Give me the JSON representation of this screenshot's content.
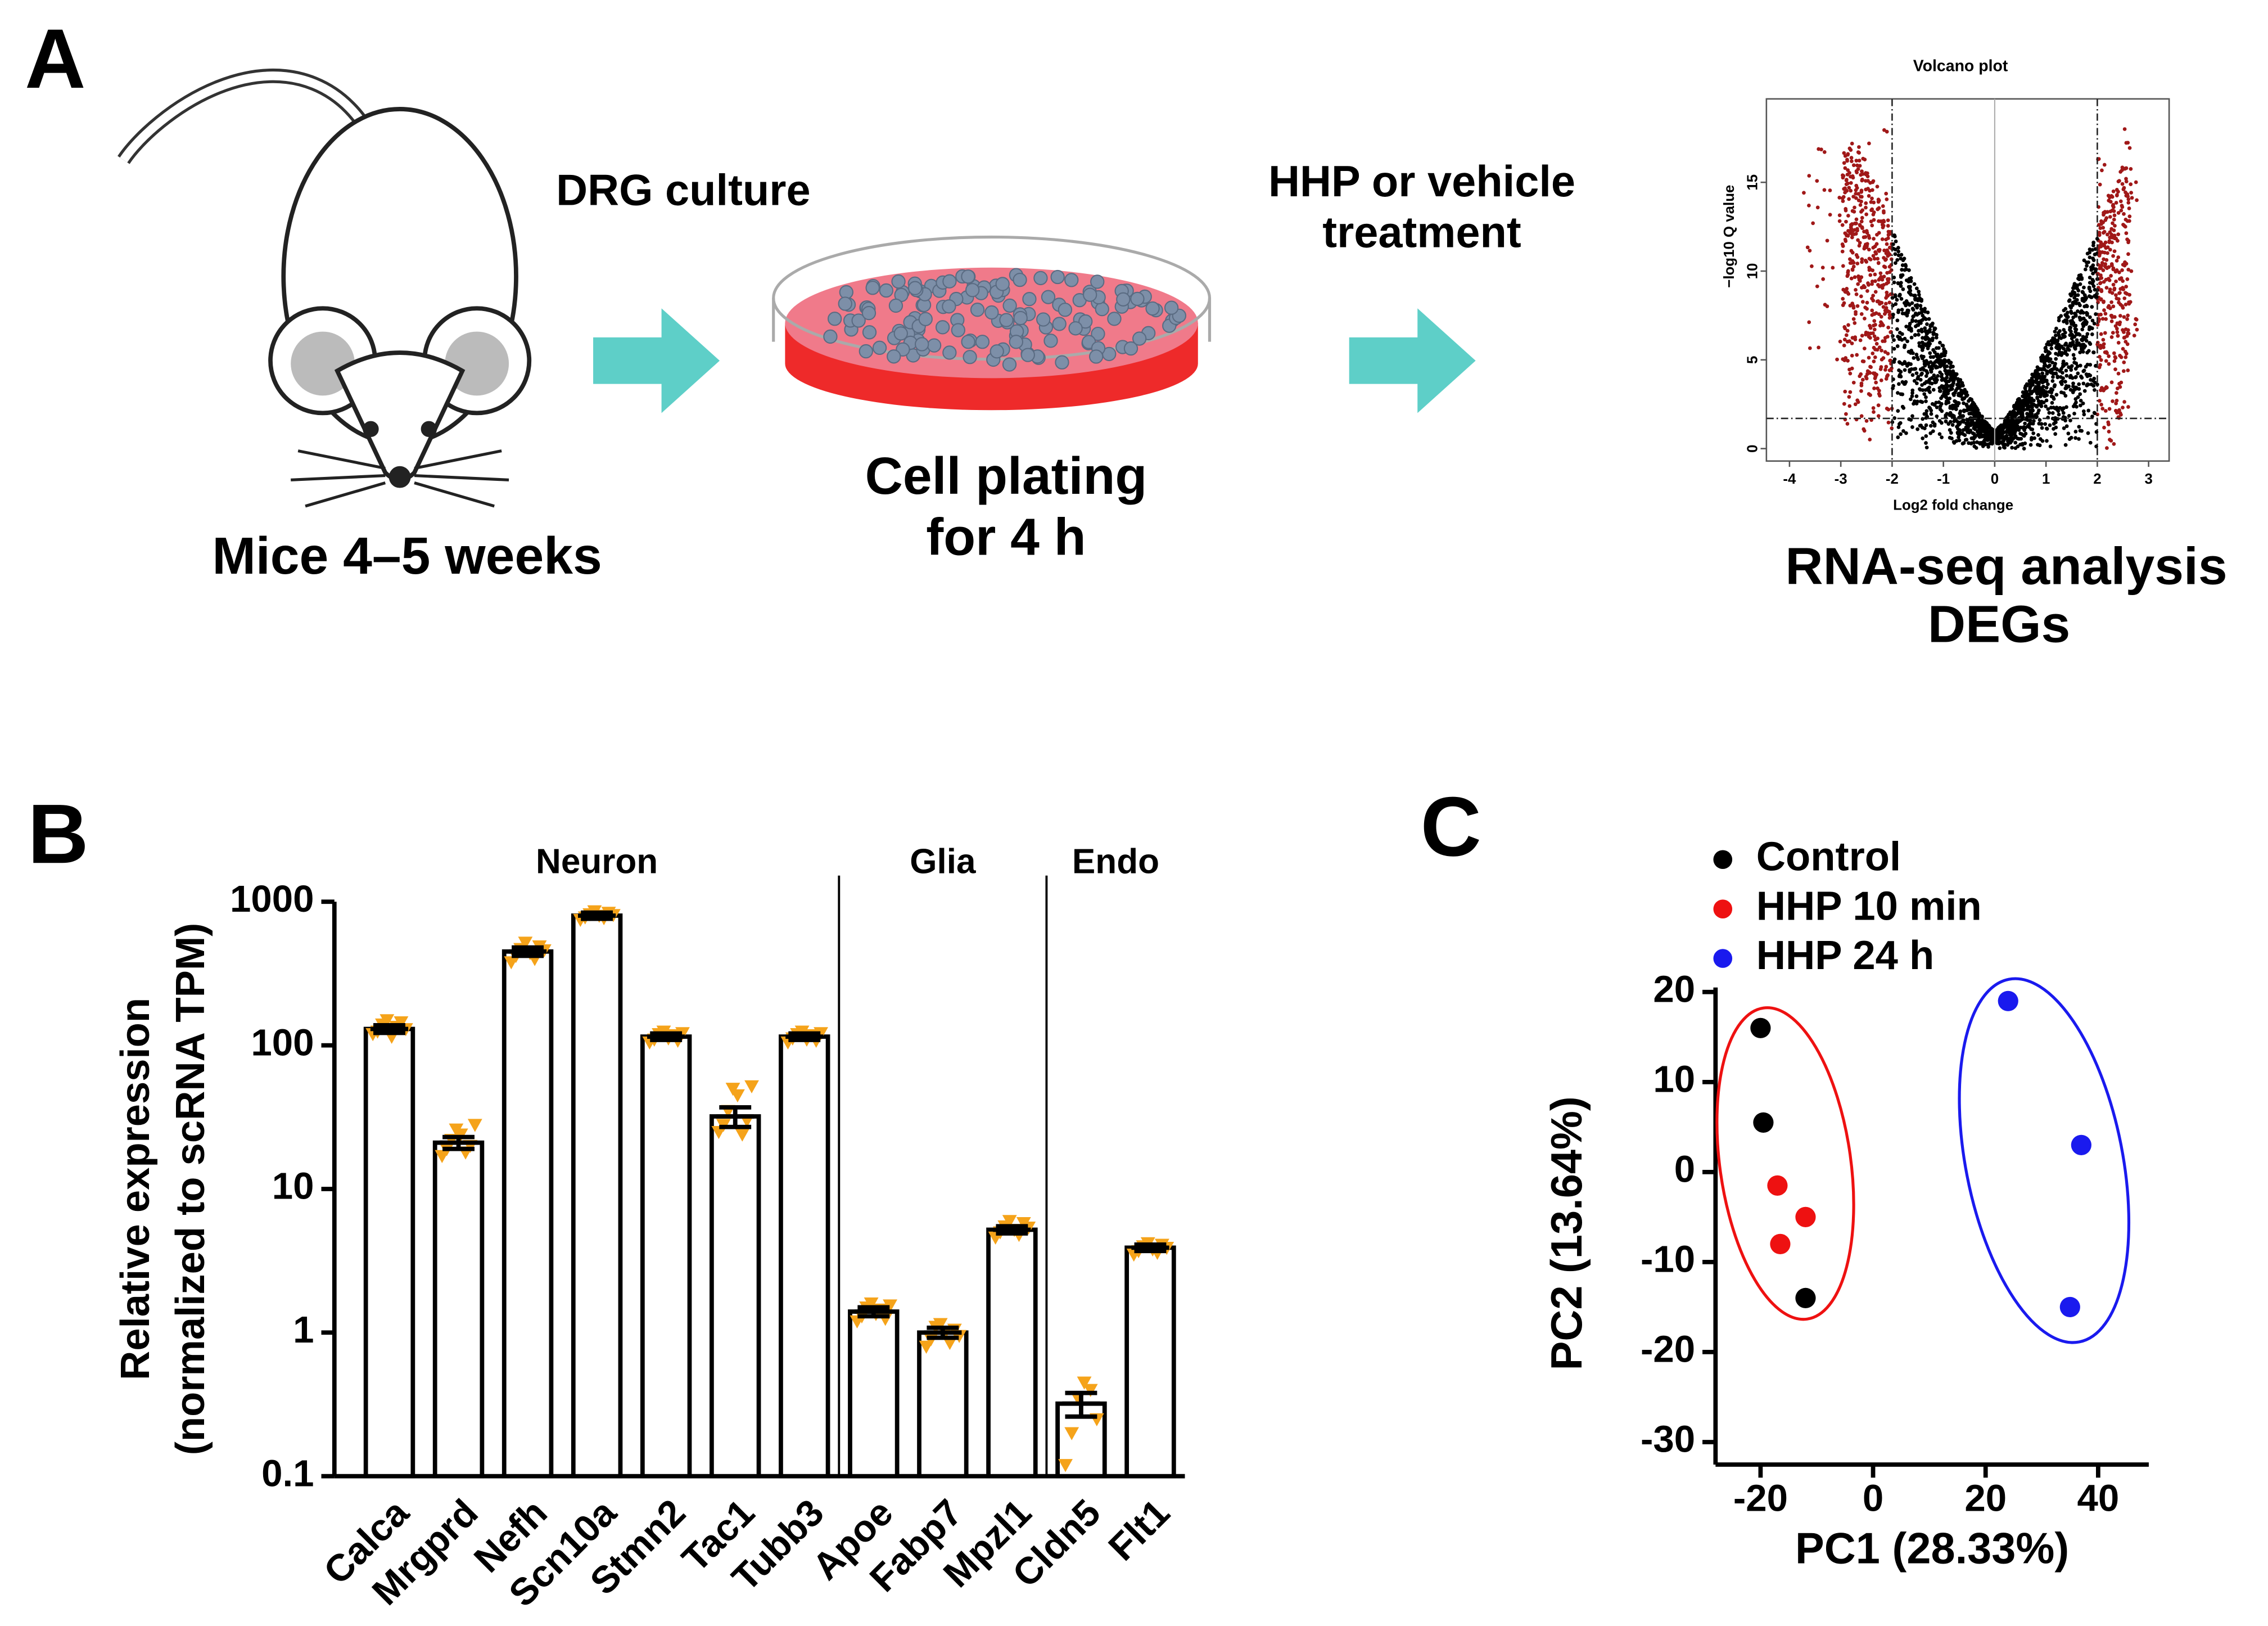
{
  "panel_labels": [
    "A",
    "B",
    "C"
  ],
  "workflow": {
    "step1": "DRG culture",
    "step1_caption": "Mice 4–5 weeks",
    "step2": [
      "Cell plating",
      "for 4 h"
    ],
    "step3": [
      "HHP or vehicle",
      "treatment"
    ],
    "step4": [
      "RNA-seq analysis",
      "DEGs"
    ]
  },
  "chart_data": [
    {
      "type": "volcano",
      "title": "Volcano plot",
      "xlabel": "Log2 fold change",
      "ylabel": "−log10 Q value",
      "xlim": [
        -4.45,
        3.4
      ],
      "ylim": [
        -0.7,
        19.7
      ],
      "xticks": [
        -4,
        -3,
        -2,
        -1,
        0,
        1,
        2,
        3
      ],
      "yticks": [
        0,
        5,
        10,
        15
      ],
      "fold_change_threshold": [
        -2,
        2
      ],
      "q_threshold": 1.7
    },
    {
      "type": "bar",
      "ylabel": [
        "Relative expression",
        "(normalized to scRNA TPM)"
      ],
      "log_scale": true,
      "ylim": [
        0.1,
        1000
      ],
      "yticks": [
        0.1,
        1,
        10,
        100,
        1000
      ],
      "groups": [
        {
          "name": "Neuron",
          "count": 7
        },
        {
          "name": "Glia",
          "count": 3
        },
        {
          "name": "Endo",
          "count": 2
        }
      ],
      "categories": [
        "Calca",
        "Mrgprd",
        "Nefh",
        "Scn10a",
        "Stmn2",
        "Tac1",
        "Tubb3",
        "Apoe",
        "Fabp7",
        "Mpzl1",
        "Cldn5",
        "Flt1"
      ],
      "values": [
        130,
        21,
        450,
        800,
        115,
        32,
        115,
        1.4,
        1.0,
        5.2,
        0.32,
        3.9
      ],
      "errors": [
        8,
        2,
        30,
        40,
        6,
        5,
        6,
        0.1,
        0.08,
        0.3,
        0.06,
        0.2
      ],
      "points": [
        [
          120,
          125,
          140,
          150,
          115,
          135,
          145,
          130
        ],
        [
          17,
          19,
          22,
          26,
          24,
          18,
          20,
          28
        ],
        [
          380,
          420,
          470,
          520,
          440,
          400,
          490,
          460
        ],
        [
          750,
          780,
          820,
          860,
          800,
          770,
          840,
          810
        ],
        [
          105,
          110,
          120,
          125,
          112,
          118,
          108,
          122
        ],
        [
          25,
          28,
          35,
          50,
          45,
          24,
          30,
          52
        ],
        [
          105,
          112,
          120,
          125,
          110,
          118,
          108,
          122
        ],
        [
          1.2,
          1.3,
          1.5,
          1.6,
          1.35,
          1.45,
          1.25,
          1.55
        ],
        [
          0.8,
          0.9,
          1.1,
          1.15,
          1.0,
          0.85,
          1.05,
          0.95
        ],
        [
          4.6,
          5.0,
          5.5,
          6.0,
          5.2,
          4.8,
          5.8,
          5.4
        ],
        [
          0.12,
          0.2,
          0.35,
          0.45,
          0.4,
          0.25
        ],
        [
          3.5,
          3.7,
          4.0,
          4.2,
          3.8,
          3.6,
          4.1,
          3.9
        ]
      ],
      "color": "#ffffff",
      "point_color": "#f5a31a"
    },
    {
      "type": "scatter",
      "xlabel": "PC1 (28.33%)",
      "ylabel": "PC2 (13.64%)",
      "xlim": [
        -28,
        49
      ],
      "ylim": [
        -32.5,
        20.5
      ],
      "xticks": [
        -20,
        0,
        20,
        40
      ],
      "yticks": [
        20,
        10,
        0,
        -10,
        -20,
        -30
      ],
      "legend": "upper left",
      "series": [
        {
          "name": "Control",
          "color": "#000000",
          "x": [
            -20,
            -19.5,
            -12
          ],
          "values": [
            16,
            5.5,
            -14
          ]
        },
        {
          "name": "HHP 10 min",
          "color": "#ee1111",
          "x": [
            -17,
            -12,
            -16.5
          ],
          "values": [
            -1.5,
            -5,
            -8
          ]
        },
        {
          "name": "HHP 24 h",
          "color": "#1a1aee",
          "x": [
            24,
            37,
            35
          ],
          "values": [
            19,
            3,
            -15
          ]
        }
      ]
    }
  ]
}
